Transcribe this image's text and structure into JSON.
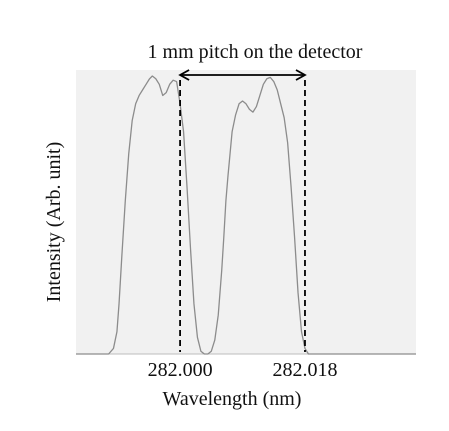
{
  "chart_data": {
    "type": "line",
    "title": "",
    "xlabel": "Wavelength (nm)",
    "ylabel": "Intensity (Arb. unit)",
    "xlim": [
      281.985,
      282.034
    ],
    "ylim": [
      0,
      1.0
    ],
    "x_ticks": [
      {
        "value": 282.0,
        "label": "282.000"
      },
      {
        "value": 282.018,
        "label": "282.018"
      }
    ],
    "grid": false,
    "legend": "none",
    "series": [
      {
        "color": "#8c8c8c",
        "x": [
          281.985,
          281.9897,
          281.9904,
          281.9909,
          281.9912,
          281.9916,
          281.9921,
          281.9926,
          281.9931,
          281.9936,
          281.9941,
          281.9946,
          281.9951,
          281.9956,
          281.996,
          281.9965,
          281.997,
          281.9975,
          281.998,
          281.9985,
          281.999,
          281.9995,
          282.0,
          282.0005,
          282.001,
          282.0015,
          282.002,
          282.0025,
          282.003,
          282.0035,
          282.004,
          282.0045,
          282.005,
          282.0055,
          282.006,
          282.0063,
          282.0066,
          282.0069,
          282.0072,
          282.0075,
          282.008,
          282.0085,
          282.009,
          282.0095,
          282.01,
          282.0105,
          282.011,
          282.0115,
          282.012,
          282.0125,
          282.013,
          282.0135,
          282.014,
          282.0145,
          282.015,
          282.0155,
          282.016,
          282.0165,
          282.017,
          282.0175,
          282.018,
          282.0185,
          282.019,
          282.0195,
          282.02,
          282.0205,
          282.021,
          282.0215,
          282.022,
          282.0225,
          282.023,
          282.0235,
          282.024,
          282.0245,
          282.025,
          282.0253,
          282.0256,
          282.0259,
          282.034
        ],
        "y": [
          0.0,
          0.0,
          0.02,
          0.08,
          0.18,
          0.35,
          0.55,
          0.72,
          0.84,
          0.9,
          0.93,
          0.95,
          0.97,
          0.99,
          1.0,
          0.99,
          0.97,
          0.93,
          0.94,
          0.97,
          0.985,
          0.98,
          0.9,
          0.8,
          0.6,
          0.38,
          0.18,
          0.06,
          0.01,
          0.0,
          0.0,
          0.01,
          0.05,
          0.14,
          0.3,
          0.42,
          0.55,
          0.64,
          0.72,
          0.8,
          0.86,
          0.9,
          0.91,
          0.9,
          0.88,
          0.87,
          0.89,
          0.93,
          0.97,
          0.99,
          0.995,
          0.98,
          0.95,
          0.9,
          0.85,
          0.76,
          0.6,
          0.42,
          0.22,
          0.08,
          0.02,
          0.0,
          0.0,
          0.0,
          0.0,
          0.0,
          0.0,
          0.0,
          0.0,
          0.0,
          0.0,
          0.0,
          0.0,
          0.0,
          0.0,
          0.0,
          0.0,
          0.0,
          0.0
        ]
      }
    ],
    "annotations": [
      {
        "type": "vline",
        "x": 282.0,
        "style": "dashed"
      },
      {
        "type": "vline",
        "x": 282.018,
        "style": "dashed"
      },
      {
        "type": "double-arrow",
        "x_from": 282.0,
        "x_to": 282.018,
        "text": "1 mm pitch on the detector"
      }
    ]
  }
}
